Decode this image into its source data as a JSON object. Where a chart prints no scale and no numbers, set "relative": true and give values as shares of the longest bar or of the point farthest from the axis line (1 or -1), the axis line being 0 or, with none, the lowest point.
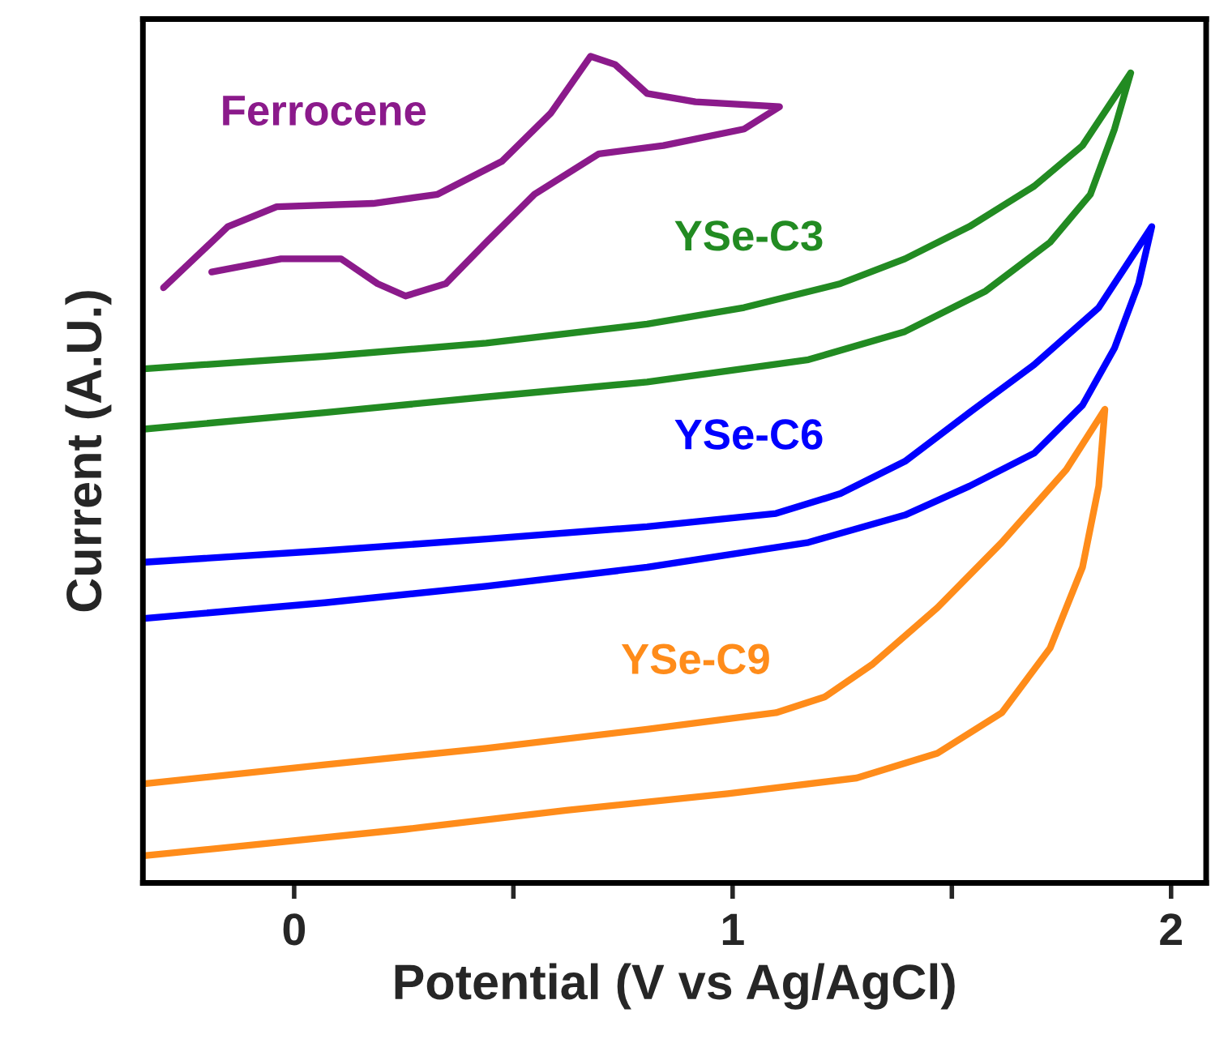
{
  "chart_data": {
    "type": "line",
    "relative": true,
    "xlabel": "Potential (V vs Ag/AgCl)",
    "ylabel": "Current (A.U.)",
    "xlim": [
      -0.345,
      2.08
    ],
    "xticks": [
      0,
      {
        "value": 0.5,
        "label": null
      },
      1,
      {
        "value": 1.5,
        "label": null
      },
      2
    ],
    "grid": false,
    "legend": false,
    "marker": "none",
    "line_style": "solid",
    "series": [
      {
        "name": "Ferrocene",
        "color": "#8b1a8b",
        "x": [
          -0.298,
          -0.151,
          -0.04,
          0.18,
          0.327,
          0.474,
          0.585,
          0.676,
          0.732,
          0.805,
          0.915,
          1.107,
          1.026,
          0.842,
          0.695,
          0.548,
          0.438,
          0.346,
          0.254,
          0.19,
          0.107,
          -0.03,
          -0.188
        ],
        "values": [
          0.72,
          0.794,
          0.818,
          0.822,
          0.833,
          0.873,
          0.931,
          1.0,
          0.99,
          0.955,
          0.945,
          0.939,
          0.912,
          0.892,
          0.882,
          0.833,
          0.775,
          0.725,
          0.71,
          0.725,
          0.755,
          0.755,
          0.739
        ]
      },
      {
        "name": "YSe-C3",
        "color": "#228b22",
        "x": [
          -0.342,
          0.07,
          0.438,
          0.805,
          1.026,
          1.246,
          1.393,
          1.54,
          1.688,
          1.798,
          1.908,
          1.871,
          1.816,
          1.724,
          1.577,
          1.393,
          1.173,
          0.805,
          0.438,
          0.07,
          -0.342
        ],
        "values": [
          0.622,
          0.637,
          0.653,
          0.676,
          0.696,
          0.725,
          0.755,
          0.794,
          0.843,
          0.892,
          0.98,
          0.912,
          0.833,
          0.775,
          0.716,
          0.667,
          0.633,
          0.606,
          0.588,
          0.569,
          0.549
        ]
      },
      {
        "name": "YSe-C6",
        "color": "#0000ff",
        "x": [
          -0.342,
          0.07,
          0.438,
          0.805,
          1.099,
          1.246,
          1.393,
          1.54,
          1.688,
          1.835,
          1.956,
          1.926,
          1.871,
          1.798,
          1.688,
          1.54,
          1.393,
          1.173,
          0.805,
          0.438,
          0.07,
          -0.342
        ],
        "values": [
          0.388,
          0.402,
          0.416,
          0.431,
          0.447,
          0.471,
          0.51,
          0.569,
          0.627,
          0.696,
          0.794,
          0.725,
          0.647,
          0.578,
          0.52,
          0.48,
          0.445,
          0.412,
          0.382,
          0.359,
          0.339,
          0.32
        ]
      },
      {
        "name": "YSe-C9",
        "color": "#ff8c1a",
        "x": [
          -0.342,
          0.07,
          0.438,
          0.805,
          1.099,
          1.21,
          1.32,
          1.467,
          1.614,
          1.761,
          1.849,
          1.835,
          1.798,
          1.724,
          1.614,
          1.467,
          1.283,
          0.989,
          0.621,
          0.254,
          -0.114,
          -0.342
        ],
        "values": [
          0.12,
          0.143,
          0.163,
          0.186,
          0.206,
          0.225,
          0.265,
          0.333,
          0.412,
          0.5,
          0.573,
          0.48,
          0.382,
          0.284,
          0.206,
          0.157,
          0.127,
          0.108,
          0.088,
          0.065,
          0.045,
          0.033
        ]
      }
    ]
  }
}
